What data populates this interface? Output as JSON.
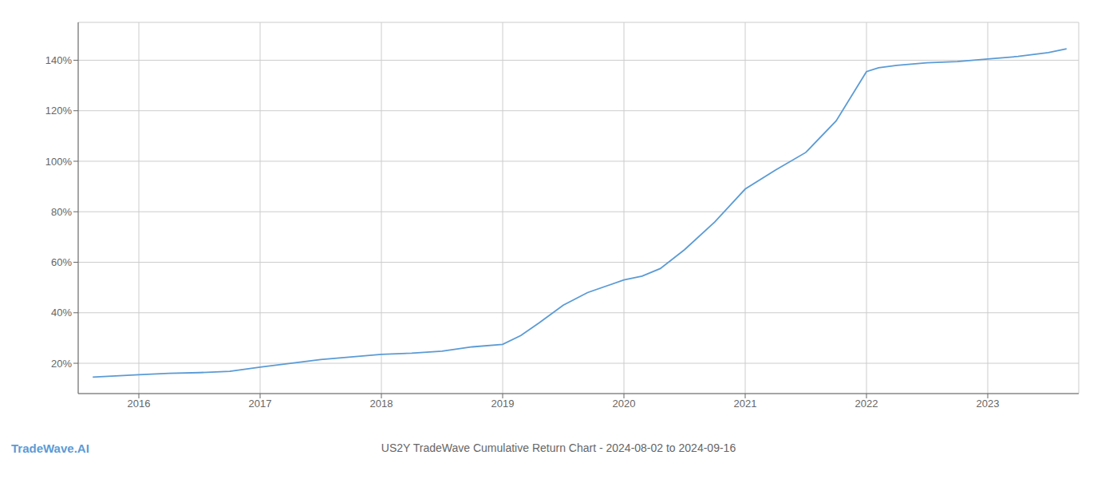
{
  "chart_data": {
    "type": "line",
    "title": "US2Y TradeWave Cumulative Return Chart - 2024-08-02 to 2024-09-16",
    "annotations": [
      "TradeWave.AI"
    ],
    "color": "#5b9bd5",
    "grid": true,
    "x": [
      2015.62,
      2016.0,
      2016.25,
      2016.5,
      2016.75,
      2017.0,
      2017.25,
      2017.5,
      2017.75,
      2018.0,
      2018.25,
      2018.5,
      2018.75,
      2019.0,
      2019.15,
      2019.3,
      2019.5,
      2019.7,
      2020.0,
      2020.15,
      2020.3,
      2020.5,
      2020.75,
      2021.0,
      2021.25,
      2021.5,
      2021.75,
      2022.0,
      2022.1,
      2022.25,
      2022.5,
      2022.75,
      2023.0,
      2023.25,
      2023.5,
      2023.65
    ],
    "values": [
      14.5,
      15.5,
      16.0,
      16.3,
      16.8,
      18.5,
      20.0,
      21.5,
      22.5,
      23.5,
      24.0,
      24.8,
      26.5,
      27.5,
      31.0,
      36.0,
      43.0,
      48.0,
      53.0,
      54.5,
      57.5,
      65.0,
      76.0,
      89.0,
      96.5,
      103.5,
      116.0,
      135.5,
      137.0,
      138.0,
      139.0,
      139.5,
      140.5,
      141.5,
      143.0,
      144.5
    ],
    "xlim": [
      2015.5,
      2023.75
    ],
    "ylim": [
      8,
      155
    ],
    "xticks": [
      2016,
      2017,
      2018,
      2019,
      2020,
      2021,
      2022,
      2023
    ],
    "yticks": [
      {
        "value": 20,
        "label": "20%"
      },
      {
        "value": 40,
        "label": "40%"
      },
      {
        "value": 60,
        "label": "60%"
      },
      {
        "value": 80,
        "label": "80%"
      },
      {
        "value": 100,
        "label": "100%"
      },
      {
        "value": 120,
        "label": "120%"
      },
      {
        "value": 140,
        "label": "140%"
      }
    ]
  }
}
